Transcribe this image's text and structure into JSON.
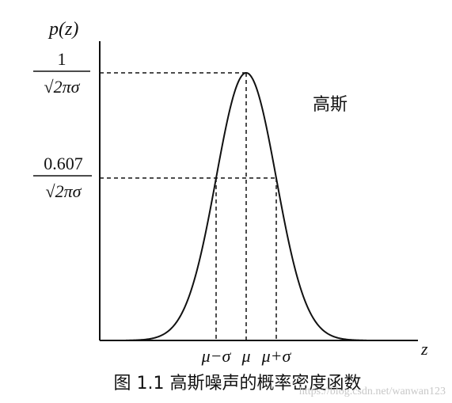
{
  "chart_data": {
    "type": "line",
    "title": "",
    "xlabel": "z",
    "ylabel": "p(z)",
    "series": [
      {
        "name": "高斯",
        "x_range_in_sigma": [
          -4,
          4
        ],
        "mu": 0,
        "sigma": 1,
        "shape": "gaussian"
      }
    ],
    "x_tick_labels": [
      "μ−σ",
      "μ",
      "μ+σ"
    ],
    "x_tick_values_in_sigma": [
      -1,
      0,
      1
    ],
    "y_tick_labels": [
      {
        "numerator": "1",
        "denominator": "√2πσ",
        "value": 1.0
      },
      {
        "numerator": "0.607",
        "denominator": "√2πσ",
        "value": 0.607
      }
    ],
    "guides": "dashed",
    "grid": false,
    "legend": "none"
  },
  "annotation": {
    "text": "高斯"
  },
  "caption": {
    "text": "图 1.1  高斯噪声的概率密度函数"
  },
  "watermark": {
    "text": "https://blog.csdn.net/wanwan123"
  },
  "colors": {
    "ink": "#111111",
    "paper": "#ffffff"
  }
}
